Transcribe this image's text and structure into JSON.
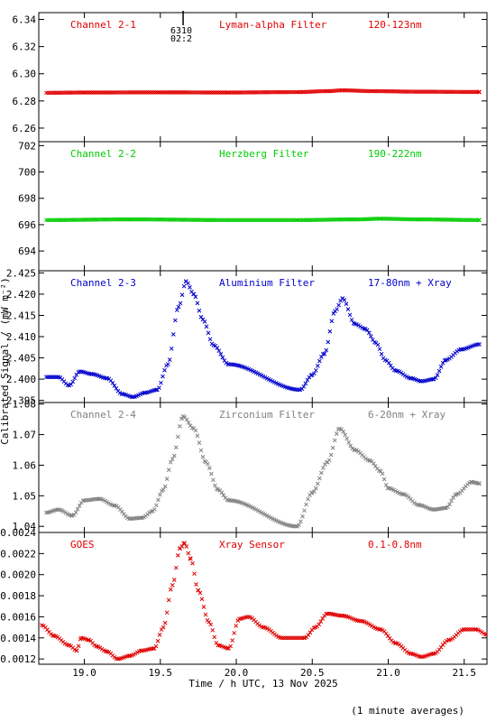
{
  "figure": {
    "xlabel": "Time / h UTC, 13 Nov 2025",
    "ylabel": "Calibrated Signal / (mW m⁻²)",
    "footnote": "(1 minute averages)",
    "xlim": [
      18.7,
      21.65
    ],
    "xticks": [
      19.0,
      19.5,
      20.0,
      20.5,
      21.0,
      21.5
    ],
    "xtick_labels": [
      "19.0",
      "19.5",
      "20.0",
      "20.5",
      "21.0",
      "21.5"
    ]
  },
  "chart_data": [
    {
      "type": "scatter",
      "color": "#e00000",
      "texts": [
        "Channel 2-1",
        "Lyman-alpha Filter",
        "120-123nm"
      ],
      "annotation": {
        "x": 19.65,
        "lines": [
          "6310",
          "02:2"
        ]
      },
      "ylim": [
        6.25,
        6.345
      ],
      "yticks": [
        6.26,
        6.28,
        6.3,
        6.32,
        6.34
      ],
      "ytick_labels": [
        "6.26",
        "6.28",
        "6.30",
        "6.32",
        "6.34"
      ],
      "series": [
        {
          "values": [
            [
              18.75,
              6.286
            ],
            [
              19.0,
              6.2862
            ],
            [
              19.5,
              6.2863
            ],
            [
              19.95,
              6.2862
            ],
            [
              20.4,
              6.2865
            ],
            [
              20.6,
              6.2872
            ],
            [
              20.7,
              6.2878
            ],
            [
              20.9,
              6.2872
            ],
            [
              21.2,
              6.2868
            ],
            [
              21.6,
              6.2866
            ]
          ]
        }
      ]
    },
    {
      "type": "scatter",
      "color": "#00cc00",
      "texts": [
        "Channel 2-2",
        "Herzberg Filter",
        "190-222nm"
      ],
      "ylim": [
        692.5,
        702.3
      ],
      "yticks": [
        694,
        696,
        698,
        700,
        702
      ],
      "ytick_labels": [
        "694",
        "696",
        "698",
        "700",
        "702"
      ],
      "series": [
        {
          "values": [
            [
              18.75,
              696.35
            ],
            [
              19.3,
              696.4
            ],
            [
              19.95,
              696.35
            ],
            [
              20.4,
              696.35
            ],
            [
              20.8,
              696.4
            ],
            [
              20.95,
              696.45
            ],
            [
              21.2,
              696.4
            ],
            [
              21.6,
              696.35
            ]
          ]
        }
      ]
    },
    {
      "type": "scatter",
      "color": "#0000cc",
      "texts": [
        "Channel 2-3",
        "Aluminium Filter",
        "17-80nm + Xray"
      ],
      "ylim": [
        2.3945,
        2.4255
      ],
      "yticks": [
        2.395,
        2.4,
        2.405,
        2.41,
        2.415,
        2.42,
        2.425
      ],
      "ytick_labels": [
        "2.395",
        "2.400",
        "2.405",
        "2.410",
        "2.415",
        "2.420",
        "2.425"
      ],
      "series": [
        {
          "values": [
            [
              18.75,
              2.4005
            ],
            [
              18.83,
              2.4005
            ],
            [
              18.9,
              2.3985
            ],
            [
              18.97,
              2.4018
            ],
            [
              19.05,
              2.4012
            ],
            [
              19.15,
              2.4002
            ],
            [
              19.25,
              2.3965
            ],
            [
              19.32,
              2.3958
            ],
            [
              19.4,
              2.3968
            ],
            [
              19.48,
              2.3975
            ],
            [
              19.55,
              2.4035
            ],
            [
              19.62,
              2.417
            ],
            [
              19.67,
              2.423
            ],
            [
              19.72,
              2.42
            ],
            [
              19.78,
              2.414
            ],
            [
              19.85,
              2.408
            ],
            [
              19.95,
              2.4035
            ],
            [
              20.42,
              2.3975
            ],
            [
              20.5,
              2.401
            ],
            [
              20.58,
              2.406
            ],
            [
              20.65,
              2.416
            ],
            [
              20.7,
              2.419
            ],
            [
              20.78,
              2.413
            ],
            [
              20.85,
              2.4118
            ],
            [
              20.92,
              2.4085
            ],
            [
              20.98,
              2.4045
            ],
            [
              21.05,
              2.402
            ],
            [
              21.15,
              2.4002
            ],
            [
              21.22,
              2.3995
            ],
            [
              21.3,
              2.4
            ],
            [
              21.38,
              2.4045
            ],
            [
              21.48,
              2.407
            ],
            [
              21.6,
              2.4082
            ]
          ]
        }
      ]
    },
    {
      "type": "scatter",
      "color": "#808080",
      "texts": [
        "Channel 2-4",
        "Zirconium Filter",
        "6-20nm + Xray"
      ],
      "ylim": [
        1.038,
        1.0805
      ],
      "yticks": [
        1.04,
        1.05,
        1.06,
        1.07,
        1.08
      ],
      "ytick_labels": [
        "1.04",
        "1.05",
        "1.06",
        "1.07",
        "1.08"
      ],
      "series": [
        {
          "values": [
            [
              18.75,
              1.0445
            ],
            [
              18.83,
              1.0455
            ],
            [
              18.92,
              1.0435
            ],
            [
              19.0,
              1.0485
            ],
            [
              19.1,
              1.049
            ],
            [
              19.2,
              1.0468
            ],
            [
              19.3,
              1.0425
            ],
            [
              19.38,
              1.0428
            ],
            [
              19.45,
              1.045
            ],
            [
              19.52,
              1.052
            ],
            [
              19.58,
              1.062
            ],
            [
              19.65,
              1.076
            ],
            [
              19.72,
              1.072
            ],
            [
              19.8,
              1.061
            ],
            [
              19.88,
              1.052
            ],
            [
              19.95,
              1.0485
            ],
            [
              20.4,
              1.04
            ],
            [
              20.5,
              1.051
            ],
            [
              20.6,
              1.061
            ],
            [
              20.68,
              1.072
            ],
            [
              20.78,
              1.065
            ],
            [
              20.88,
              1.0615
            ],
            [
              20.95,
              1.058
            ],
            [
              21.0,
              1.0525
            ],
            [
              21.1,
              1.0505
            ],
            [
              21.2,
              1.047
            ],
            [
              21.3,
              1.0455
            ],
            [
              21.38,
              1.046
            ],
            [
              21.45,
              1.0505
            ],
            [
              21.55,
              1.0545
            ],
            [
              21.6,
              1.054
            ]
          ]
        }
      ]
    },
    {
      "type": "scatter",
      "color": "#e00000",
      "texts": [
        "GOES",
        "Xray Sensor",
        "0.1-0.8nm"
      ],
      "ylim": [
        0.00115,
        0.0024
      ],
      "yticks": [
        0.0012,
        0.0014,
        0.0016,
        0.0018,
        0.002,
        0.0022,
        0.0024
      ],
      "ytick_labels": [
        "0.0012",
        "0.0014",
        "0.0016",
        "0.0018",
        "0.0020",
        "0.0022",
        "0.0024"
      ],
      "series": [
        {
          "values": [
            [
              18.72,
              0.00152
            ],
            [
              18.8,
              0.00142
            ],
            [
              18.9,
              0.00133
            ],
            [
              18.95,
              0.00128
            ],
            [
              18.98,
              0.0014
            ],
            [
              19.03,
              0.00138
            ],
            [
              19.08,
              0.00132
            ],
            [
              19.15,
              0.00127
            ],
            [
              19.22,
              0.0012
            ],
            [
              19.3,
              0.00123
            ],
            [
              19.38,
              0.00128
            ],
            [
              19.46,
              0.0013
            ],
            [
              19.52,
              0.0015
            ],
            [
              19.58,
              0.0019
            ],
            [
              19.63,
              0.00225
            ],
            [
              19.66,
              0.0023
            ],
            [
              19.7,
              0.00215
            ],
            [
              19.75,
              0.00185
            ],
            [
              19.82,
              0.00155
            ],
            [
              19.88,
              0.00133
            ],
            [
              19.95,
              0.0013
            ],
            [
              20.02,
              0.00158
            ],
            [
              20.08,
              0.0016
            ],
            [
              20.18,
              0.0015
            ],
            [
              20.3,
              0.0014
            ],
            [
              20.45,
              0.0014
            ],
            [
              20.52,
              0.0015
            ],
            [
              20.6,
              0.00163
            ],
            [
              20.7,
              0.00161
            ],
            [
              20.82,
              0.00156
            ],
            [
              20.95,
              0.00148
            ],
            [
              21.05,
              0.00135
            ],
            [
              21.15,
              0.00125
            ],
            [
              21.22,
              0.00122
            ],
            [
              21.3,
              0.00125
            ],
            [
              21.4,
              0.00138
            ],
            [
              21.5,
              0.00148
            ],
            [
              21.58,
              0.00148
            ],
            [
              21.65,
              0.00143
            ]
          ]
        }
      ]
    }
  ]
}
